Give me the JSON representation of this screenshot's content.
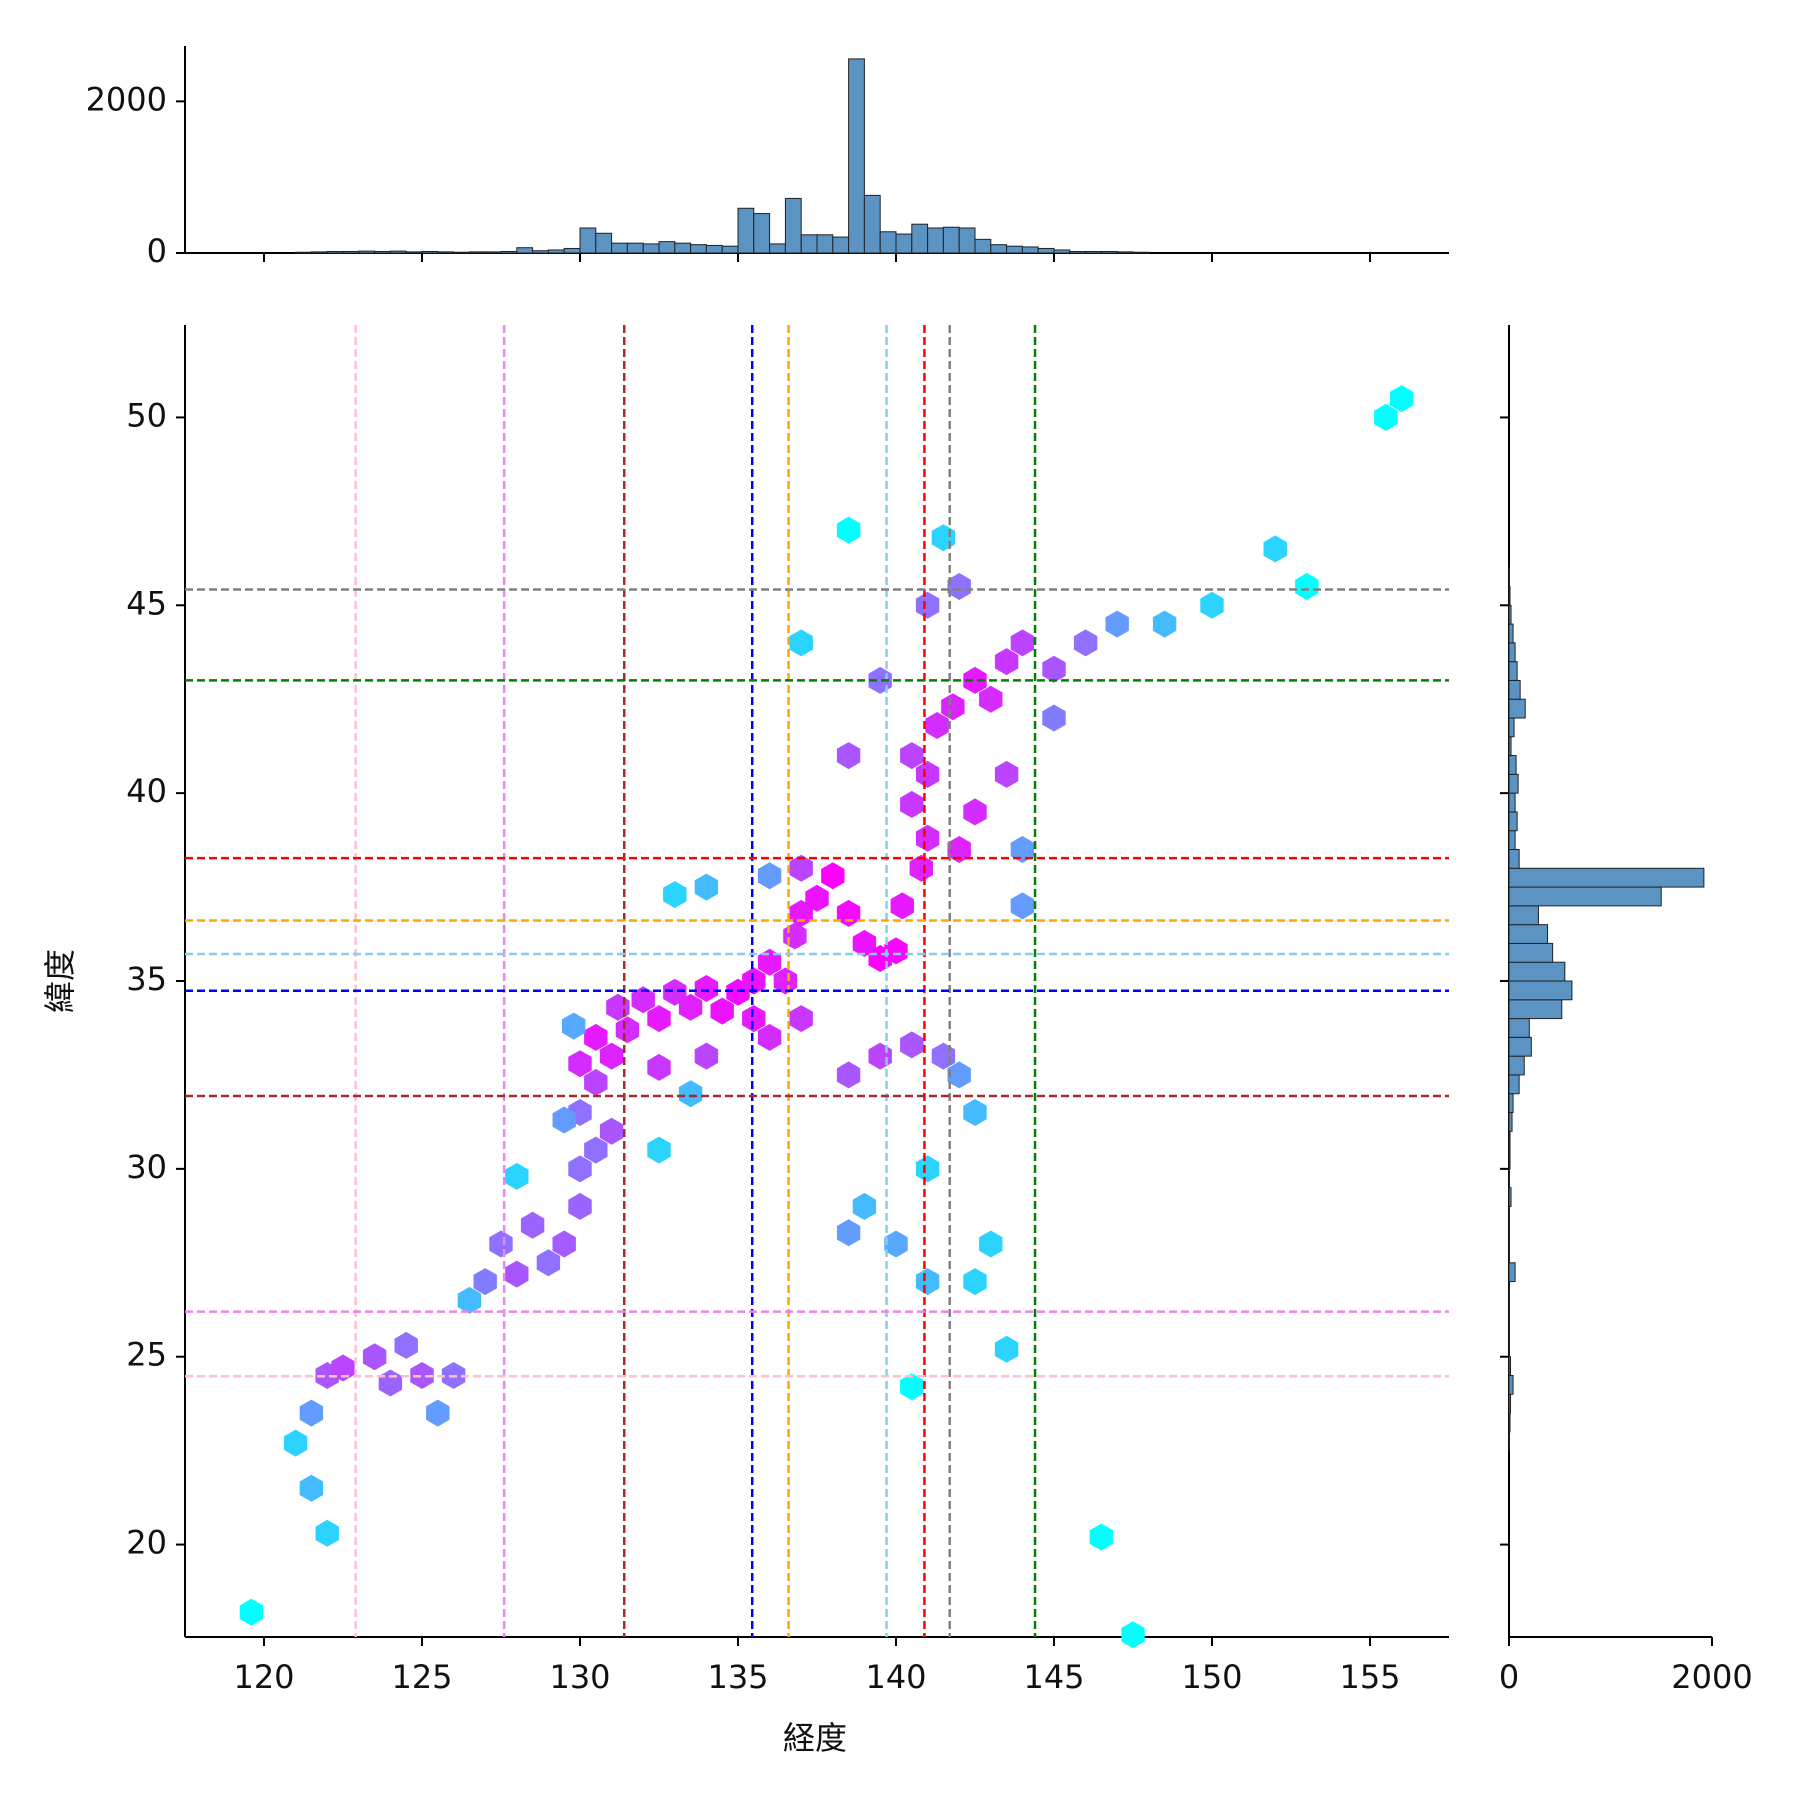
{
  "chart_data": [
    {
      "type": "hexbin",
      "xlabel": "経度",
      "ylabel": "緯度",
      "cmap": [
        "#00ffff",
        "#ff00ff"
      ],
      "xlim": [
        117.5,
        157.5
      ],
      "ylim": [
        17.54,
        52.46
      ],
      "xticks": [
        120,
        125,
        130,
        135,
        140,
        145,
        150,
        155
      ],
      "yticks": [
        20,
        25,
        30,
        35,
        40,
        45,
        50
      ],
      "x": [
        119.6,
        121,
        121.5,
        122,
        122.5,
        123.5,
        124,
        124.5,
        125,
        125.5,
        126,
        126.5,
        127,
        127.5,
        128,
        128.5,
        129,
        129.5,
        130,
        130.5,
        130,
        130.5,
        130,
        130.5,
        131,
        131.5,
        131.2,
        132,
        132.5,
        133,
        133.5,
        134,
        134.5,
        135,
        135.5,
        135.5,
        136,
        136.5,
        136.8,
        137,
        137.5,
        138,
        138.5,
        139,
        139.5,
        140,
        140.2,
        140.8,
        141,
        140.5,
        141,
        140.5,
        141.3,
        141.8,
        142.5,
        143,
        143.5,
        144,
        145,
        146,
        147,
        148.5,
        150,
        152,
        153,
        155.5,
        156,
        137,
        138.5,
        141.5,
        141,
        142,
        139.5,
        138.5,
        137,
        134,
        133,
        136,
        139,
        138.5,
        140,
        141,
        142.5,
        143,
        143.5,
        140.5,
        146.5,
        147.5,
        122,
        121.5,
        128,
        129.5,
        132.5,
        133.5,
        129.8,
        138.5,
        139.5,
        140.5,
        141.5,
        142,
        142.5,
        141,
        144,
        144,
        145,
        143.5,
        142.5,
        142,
        136,
        137,
        134,
        132.5,
        131,
        130
      ],
      "y": [
        18.2,
        22.7,
        23.5,
        24.5,
        24.7,
        25,
        24.3,
        25.3,
        24.5,
        23.5,
        24.5,
        26.5,
        27,
        28,
        27.2,
        28.5,
        27.5,
        28,
        29,
        30.5,
        31.5,
        32.3,
        32.8,
        33.5,
        33,
        33.7,
        34.3,
        34.5,
        34,
        34.7,
        34.3,
        34.8,
        34.2,
        34.7,
        35,
        34,
        35.5,
        35,
        36.2,
        36.8,
        37.2,
        37.8,
        36.8,
        36,
        35.6,
        35.8,
        37,
        38,
        38.8,
        39.7,
        40.5,
        41,
        41.8,
        42.3,
        43,
        42.5,
        43.5,
        44,
        43.3,
        44,
        44.5,
        44.5,
        45,
        46.5,
        45.5,
        50,
        50.5,
        44,
        47,
        46.8,
        45,
        45.5,
        43,
        41,
        38,
        37.5,
        37.3,
        37.8,
        29,
        28.3,
        28,
        27,
        27,
        28,
        25.2,
        24.2,
        20.2,
        17.6,
        20.3,
        21.5,
        29.8,
        31.3,
        30.5,
        32,
        33.8,
        32.5,
        33,
        33.3,
        33,
        32.5,
        31.5,
        30,
        37,
        38.5,
        42,
        40.5,
        39.5,
        38.5,
        33.5,
        34,
        33,
        32.7,
        31,
        30
      ],
      "counts": [
        1,
        2,
        5,
        15,
        20,
        15,
        12,
        10,
        15,
        5,
        10,
        3,
        8,
        10,
        15,
        12,
        10,
        14,
        12,
        10,
        10,
        20,
        30,
        40,
        35,
        30,
        25,
        30,
        40,
        30,
        35,
        40,
        45,
        50,
        45,
        40,
        40,
        35,
        30,
        40,
        45,
        60,
        50,
        45,
        60,
        55,
        40,
        35,
        30,
        25,
        25,
        20,
        30,
        35,
        40,
        30,
        25,
        20,
        15,
        10,
        5,
        3,
        2,
        2,
        1,
        1,
        1,
        2,
        1,
        2,
        10,
        10,
        10,
        15,
        20,
        3,
        2,
        5,
        3,
        5,
        4,
        3,
        2,
        2,
        2,
        1,
        1,
        1,
        2,
        3,
        2,
        5,
        2,
        3,
        4,
        15,
        20,
        15,
        10,
        5,
        3,
        2,
        5,
        5,
        8,
        20,
        30,
        35,
        30,
        25,
        20,
        25,
        15,
        10
      ],
      "vlines": [
        {
          "x": 122.9,
          "color": "pink"
        },
        {
          "x": 127.6,
          "color": "violet"
        },
        {
          "x": 131.4,
          "color": "brown"
        },
        {
          "x": 135.45,
          "color": "blue"
        },
        {
          "x": 136.6,
          "color": "orange"
        },
        {
          "x": 139.7,
          "color": "skyblue"
        },
        {
          "x": 140.9,
          "color": "red"
        },
        {
          "x": 141.7,
          "color": "gray"
        },
        {
          "x": 144.4,
          "color": "green"
        }
      ],
      "hlines": [
        {
          "y": 24.48,
          "color": "pink"
        },
        {
          "y": 26.2,
          "color": "violet"
        },
        {
          "y": 31.94,
          "color": "brown"
        },
        {
          "y": 34.74,
          "color": "blue"
        },
        {
          "y": 35.72,
          "color": "skyblue"
        },
        {
          "y": 36.61,
          "color": "orange"
        },
        {
          "y": 38.27,
          "color": "red"
        },
        {
          "y": 43.0,
          "color": "green"
        },
        {
          "y": 45.42,
          "color": "gray"
        }
      ]
    },
    {
      "type": "histogram",
      "orientation": "vertical",
      "color": "#5b93c3",
      "xlim": [
        117.5,
        157.5
      ],
      "ylim": [
        0,
        2730
      ],
      "yticks": [
        0,
        2000
      ],
      "xticks": [
        120,
        125,
        130,
        135,
        140,
        145,
        150,
        155
      ],
      "bins": [
        121,
        121.5,
        122,
        122.5,
        123,
        123.5,
        124,
        124.5,
        125,
        125.5,
        126,
        126.5,
        127,
        127.5,
        128,
        128.5,
        129,
        129.5,
        130,
        130.5,
        131,
        131.5,
        132,
        132.5,
        133,
        133.5,
        134,
        134.5,
        135,
        135.5,
        136,
        136.5,
        137,
        137.5,
        138,
        138.5,
        139,
        139.5,
        140,
        140.5,
        141,
        141.5,
        142,
        142.5,
        143,
        143.5,
        144,
        144.5,
        145,
        145.5,
        146,
        146.5,
        147,
        147.5,
        148
      ],
      "values": [
        10,
        15,
        20,
        20,
        25,
        20,
        25,
        15,
        20,
        15,
        10,
        15,
        15,
        20,
        70,
        30,
        40,
        60,
        330,
        260,
        130,
        130,
        120,
        150,
        130,
        110,
        100,
        90,
        590,
        520,
        120,
        720,
        240,
        240,
        210,
        2560,
        760,
        280,
        250,
        380,
        330,
        340,
        330,
        180,
        110,
        90,
        80,
        60,
        40,
        20,
        20,
        20,
        15,
        10
      ]
    },
    {
      "type": "histogram",
      "orientation": "horizontal",
      "color": "#5b93c3",
      "xlim": [
        0,
        2000
      ],
      "xticks": [
        0,
        2000
      ],
      "ylim": [
        17.54,
        52.46
      ],
      "yticks": [
        20,
        25,
        30,
        35,
        40,
        45,
        50
      ],
      "bins": [
        20,
        20.5,
        21,
        21.5,
        22,
        22.5,
        23,
        23.5,
        24,
        24.5,
        25,
        25.5,
        26,
        26.5,
        27,
        27.5,
        28,
        28.5,
        29,
        29.5,
        30,
        30.5,
        31,
        31.5,
        32,
        32.5,
        33,
        33.5,
        34,
        34.5,
        35,
        35.5,
        36,
        36.5,
        37,
        37.5,
        38,
        38.5,
        39,
        39.5,
        40,
        40.5,
        41,
        41.5,
        42,
        42.5,
        43,
        43.5,
        44,
        44.5,
        45,
        45.5,
        46
      ],
      "values": [
        0,
        0,
        0,
        0,
        0,
        5,
        10,
        15,
        40,
        15,
        5,
        5,
        5,
        5,
        60,
        5,
        5,
        5,
        20,
        5,
        10,
        10,
        30,
        40,
        100,
        150,
        220,
        200,
        520,
        620,
        550,
        430,
        380,
        290,
        1500,
        1920,
        100,
        60,
        80,
        60,
        90,
        70,
        20,
        50,
        160,
        110,
        80,
        60,
        40,
        20,
        10,
        5
      ]
    }
  ]
}
